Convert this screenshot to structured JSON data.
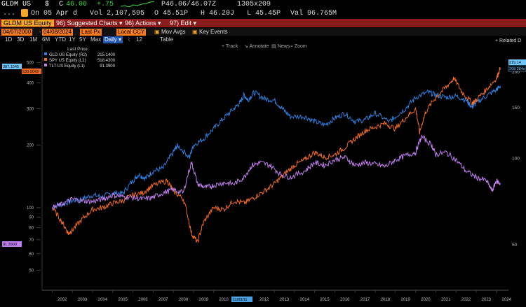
{
  "quote": {
    "ticker": "GLDM US",
    "currency": "$",
    "last_prefix": "C",
    "last": "46.06",
    "change": "+.75",
    "bid_ask": "P46.06/46.07Z",
    "size": "1305x209",
    "on_label": "On 05 Apr d",
    "volume": "Vol 2,107,595",
    "open": "O 45.51P",
    "high": "H 46.20J",
    "low": "L 45.45P",
    "value": "Val 96.765M"
  },
  "menu": {
    "security": "GLDM US Equity",
    "suggested": "96) Suggested Charts ▾",
    "actions": "96) Actions ▾",
    "edit": "97) Edit ▾"
  },
  "controls": {
    "start_date": "04/07/2000",
    "end_date": "04/08/2024",
    "price_type": "Last Px",
    "currency": "Local CCY",
    "mov_avgs": "Mov Avgs",
    "key_events": "Key Events"
  },
  "ranges": [
    "1D",
    "3D",
    "1M",
    "6M",
    "YTD",
    "1Y",
    "5Y",
    "Max",
    "Daily ▾",
    "12",
    "Table"
  ],
  "active_range": "Daily ▾",
  "chart_toolbar": [
    "Track",
    "Annotate",
    "News",
    "Zoom"
  ],
  "related": "+ Related D",
  "chart_data": {
    "type": "line",
    "legend_title": "Last Price",
    "series": [
      {
        "name": "GLD US Equity",
        "axis": "(R2)",
        "last": "215.1400",
        "color": "#2f7fe0",
        "x": [
          2002.0,
          2002.5,
          2003.0,
          2003.5,
          2004.0,
          2004.5,
          2005.0,
          2005.5,
          2006.0,
          2006.3,
          2006.6,
          2007.0,
          2007.5,
          2008.0,
          2008.2,
          2008.8,
          2009.0,
          2009.5,
          2010.0,
          2010.5,
          2011.0,
          2011.3,
          2011.5,
          2011.7,
          2012.0,
          2012.5,
          2013.0,
          2013.4,
          2013.8,
          2014.5,
          2015.0,
          2015.5,
          2016.0,
          2016.5,
          2017.0,
          2017.5,
          2018.0,
          2018.7,
          2019.0,
          2019.5,
          2020.0,
          2020.6,
          2021.0,
          2021.5,
          2022.0,
          2022.5,
          2022.8,
          2023.0,
          2023.5,
          2024.0,
          2024.2
        ],
        "y": [
          100,
          104,
          108,
          110,
          115,
          113,
          118,
          117,
          135,
          145,
          138,
          150,
          155,
          185,
          200,
          175,
          200,
          215,
          240,
          270,
          300,
          320,
          350,
          330,
          360,
          335,
          330,
          300,
          275,
          275,
          260,
          250,
          270,
          285,
          260,
          265,
          285,
          260,
          275,
          300,
          340,
          360,
          350,
          340,
          345,
          330,
          305,
          320,
          345,
          370,
          386
        ]
      },
      {
        "name": "SPY US Equity",
        "axis": "(L2)",
        "last": "518.4300",
        "color": "#f26a22",
        "x": [
          2002.0,
          2002.5,
          2002.8,
          2003.0,
          2003.5,
          2004.0,
          2004.5,
          2005.0,
          2005.5,
          2006.0,
          2006.5,
          2007.0,
          2007.7,
          2008.0,
          2008.5,
          2008.9,
          2009.2,
          2009.5,
          2010.0,
          2010.5,
          2011.0,
          2011.5,
          2012.0,
          2012.5,
          2013.0,
          2013.5,
          2014.0,
          2014.5,
          2015.0,
          2015.5,
          2016.0,
          2016.5,
          2017.0,
          2017.5,
          2018.0,
          2018.5,
          2019.0,
          2019.5,
          2020.0,
          2020.2,
          2020.5,
          2021.0,
          2021.5,
          2021.9,
          2022.3,
          2022.8,
          2023.0,
          2023.5,
          2024.0,
          2024.2
        ],
        "y": [
          100,
          85,
          75,
          78,
          88,
          98,
          100,
          105,
          108,
          115,
          118,
          128,
          135,
          120,
          110,
          75,
          68,
          85,
          100,
          98,
          108,
          105,
          112,
          120,
          130,
          145,
          160,
          170,
          185,
          175,
          180,
          195,
          215,
          235,
          245,
          255,
          240,
          270,
          300,
          230,
          290,
          340,
          380,
          420,
          360,
          320,
          330,
          370,
          420,
          470
        ]
      },
      {
        "name": "TLT US Equity",
        "axis": "(L1)",
        "last": "91.3900",
        "color": "#c27ef0",
        "x": [
          2002.0,
          2002.5,
          2003.0,
          2003.5,
          2004.0,
          2004.5,
          2005.0,
          2005.5,
          2006.0,
          2006.5,
          2007.0,
          2007.5,
          2008.0,
          2008.5,
          2008.9,
          2009.2,
          2009.6,
          2010.0,
          2010.5,
          2011.0,
          2011.5,
          2011.9,
          2012.3,
          2012.8,
          2013.3,
          2013.8,
          2014.5,
          2015.0,
          2015.5,
          2016.0,
          2016.5,
          2017.0,
          2017.5,
          2018.0,
          2018.5,
          2019.0,
          2019.5,
          2020.0,
          2020.3,
          2020.8,
          2021.0,
          2021.5,
          2022.0,
          2022.5,
          2023.0,
          2023.5,
          2023.8,
          2024.0,
          2024.2
        ],
        "y": [
          100,
          104,
          110,
          108,
          107,
          110,
          115,
          113,
          112,
          110,
          112,
          118,
          122,
          118,
          165,
          130,
          125,
          128,
          132,
          130,
          140,
          160,
          165,
          160,
          145,
          140,
          150,
          165,
          160,
          170,
          175,
          160,
          165,
          162,
          158,
          170,
          178,
          185,
          220,
          200,
          180,
          185,
          170,
          150,
          140,
          135,
          120,
          135,
          130
        ]
      }
    ],
    "xlabels": [
      "2002",
      "2003",
      "2004",
      "2005",
      "2006",
      "2007",
      "2008",
      "2009",
      "2010",
      "2011",
      "2012",
      "2013",
      "2014",
      "2015",
      "2016",
      "2017",
      "2018",
      "2019",
      "2020",
      "2021",
      "2022",
      "2023",
      "2024"
    ],
    "xlim": [
      2001.5,
      2024.6
    ],
    "left_ticks": [
      50,
      60,
      70,
      80,
      90,
      100,
      200,
      300,
      400,
      500
    ],
    "right_ticks": [
      50,
      100,
      150,
      200
    ],
    "left_flags": [
      "387.1545",
      "530.0043",
      "91.3900"
    ],
    "right_flags": [
      "215.14",
      "208.284e"
    ],
    "date_flag": "11/03/11",
    "ylim_left": [
      40,
      560
    ],
    "log_scale": true,
    "grid": false,
    "legend_position": "top-left"
  }
}
